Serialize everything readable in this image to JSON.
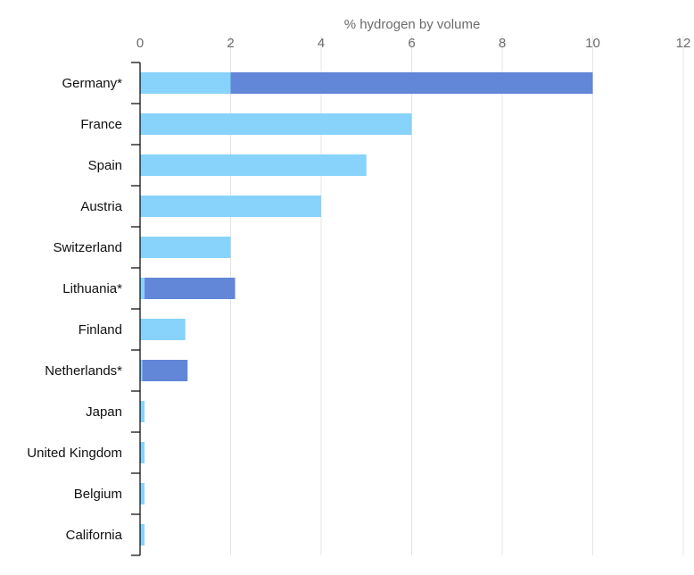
{
  "chart_data": {
    "type": "bar",
    "orientation": "horizontal",
    "stacked": true,
    "xlabel": "% hydrogen by volume",
    "xlim": [
      0,
      12
    ],
    "xticks": [
      0,
      2,
      4,
      6,
      8,
      10,
      12
    ],
    "grid": true,
    "categories": [
      "Germany*",
      "France",
      "Spain",
      "Austria",
      "Switzerland",
      "Lithuania*",
      "Finland",
      "Netherlands*",
      "Japan",
      "United Kingdom",
      "Belgium",
      "California"
    ],
    "series": [
      {
        "color": "#87d3fb",
        "values": [
          2,
          6,
          5,
          4,
          2,
          0.1,
          1,
          0.05,
          0.1,
          0.1,
          0.1,
          0.1
        ]
      },
      {
        "color": "#6286d8",
        "values": [
          8,
          0,
          0,
          0,
          0,
          2,
          0,
          1,
          0,
          0,
          0,
          0
        ]
      }
    ],
    "colors": {
      "axis": "#000000",
      "grid": "#e4e4e4",
      "tick_text": "#6b6b6b",
      "label_text": "#111111"
    }
  }
}
